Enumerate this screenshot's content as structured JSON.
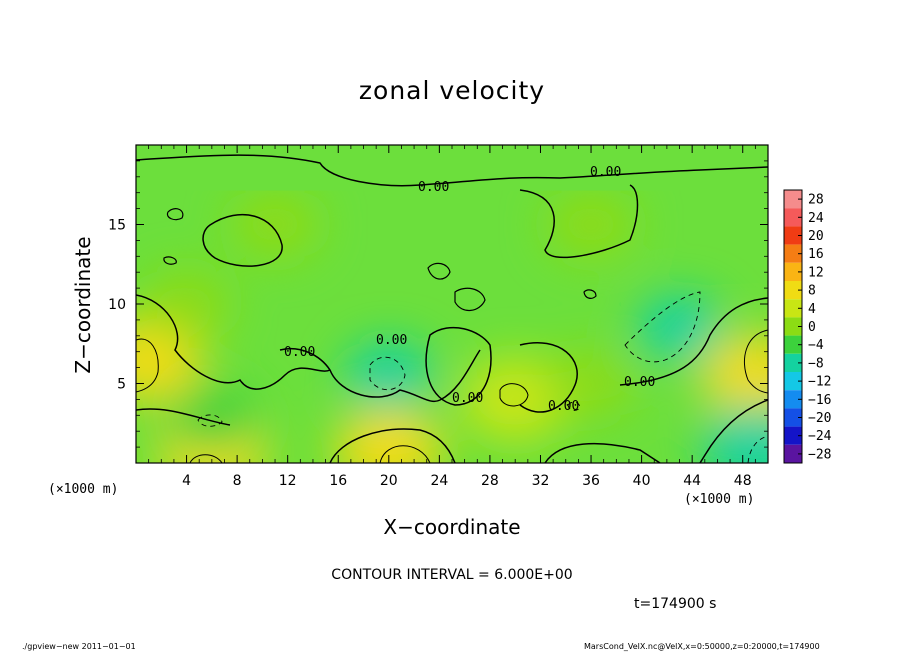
{
  "chart_data": {
    "type": "heatmap",
    "title": "zonal velocity",
    "xlabel": "X−coordinate",
    "ylabel": "Z−coordinate",
    "x_unit_left": "(×1000 m)",
    "x_unit_right": "(×1000 m)",
    "xlim": [
      0,
      50
    ],
    "ylim": [
      0,
      20
    ],
    "x_ticks": [
      4,
      8,
      12,
      16,
      20,
      24,
      28,
      32,
      36,
      40,
      44,
      48
    ],
    "x_tick_labels": [
      "4",
      "8",
      "12",
      "16",
      "20",
      "24",
      "28",
      "32",
      "36",
      "40",
      "44",
      "48"
    ],
    "y_ticks": [
      5,
      10,
      15
    ],
    "y_tick_labels": [
      "5",
      "10",
      "15"
    ],
    "colorbar": {
      "levels": [
        28,
        24,
        20,
        16,
        12,
        8,
        4,
        0,
        -4,
        -8,
        -12,
        -16,
        -20,
        -24,
        -28
      ],
      "labels": [
        "28",
        "24",
        "20",
        "16",
        "12",
        "8",
        "4",
        "0",
        "−4",
        "−8",
        "−12",
        "−16",
        "−20",
        "−24",
        "−28"
      ],
      "colors": [
        "#f58c8c",
        "#f55a5a",
        "#f03c14",
        "#f57d14",
        "#fab414",
        "#f0dc14",
        "#c8e614",
        "#8cdc14",
        "#3cd23c",
        "#14d2a0",
        "#14c8e6",
        "#148cf0",
        "#1450e6",
        "#1414c8",
        "#5a14a0"
      ]
    },
    "contour_interval": 6,
    "contour_line_labels": [
      "0.00",
      "0.00",
      "0.00",
      "0.00",
      "0.00",
      "0.00",
      "0.00"
    ],
    "field_features": [
      {
        "x": 1.0,
        "z": 6.5,
        "value": 10
      },
      {
        "x": 6.0,
        "z": 0.6,
        "value": 10
      },
      {
        "x": 20.0,
        "z": 0.8,
        "value": 9
      },
      {
        "x": 30.0,
        "z": 4.0,
        "value": 7
      },
      {
        "x": 49.0,
        "z": 5.5,
        "value": 8
      },
      {
        "x": 20.0,
        "z": 5.5,
        "value": -5
      },
      {
        "x": 43.0,
        "z": 8.5,
        "value": -6
      },
      {
        "x": 49.0,
        "z": 1.0,
        "value": -7
      },
      {
        "x": 6.0,
        "z": 2.8,
        "value": -4
      },
      {
        "x": 11.0,
        "z": 15.0,
        "value": 3
      },
      {
        "x": 4.0,
        "z": 10.0,
        "value": 2
      },
      {
        "x": 36.0,
        "z": 5.0,
        "value": 3
      },
      {
        "x": 36.0,
        "z": 15.0,
        "value": 2
      }
    ]
  },
  "annotations": {
    "contour_interval_text": "CONTOUR INTERVAL = 6.000E+00",
    "time_text": "t=174900 s",
    "footer_left": "./gpview−new  2011−01−01",
    "footer_right": "MarsCond_VelX.nc@VelX,x=0:50000,z=0:20000,t=174900"
  }
}
